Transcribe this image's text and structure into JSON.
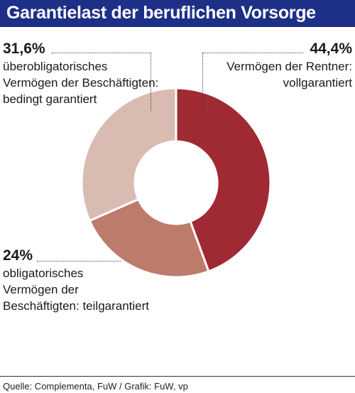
{
  "title": "Garantielast der beruflichen Vorsorge",
  "source": "Quelle: Complementa, FuW / Grafik: FuW, vp",
  "chart_data": {
    "type": "pie",
    "donut": true,
    "slices": [
      {
        "value": 44.4,
        "label_pct": "44,4%",
        "label_lines": [
          "Vermögen der Rentner:",
          "vollgarantiert"
        ],
        "color": "#9f2a33"
      },
      {
        "value": 24.0,
        "label_pct": "24%",
        "label_lines": [
          "obligatorisches",
          "Vermögen der",
          "Beschäftigten: teilgarantiert"
        ],
        "color": "#bd7b6c"
      },
      {
        "value": 31.6,
        "label_pct": "31,6%",
        "label_lines": [
          "überobligatorisches",
          "Vermögen der Beschäftigten:",
          "bedingt garantiert"
        ],
        "color": "#d8bcb2"
      }
    ]
  }
}
